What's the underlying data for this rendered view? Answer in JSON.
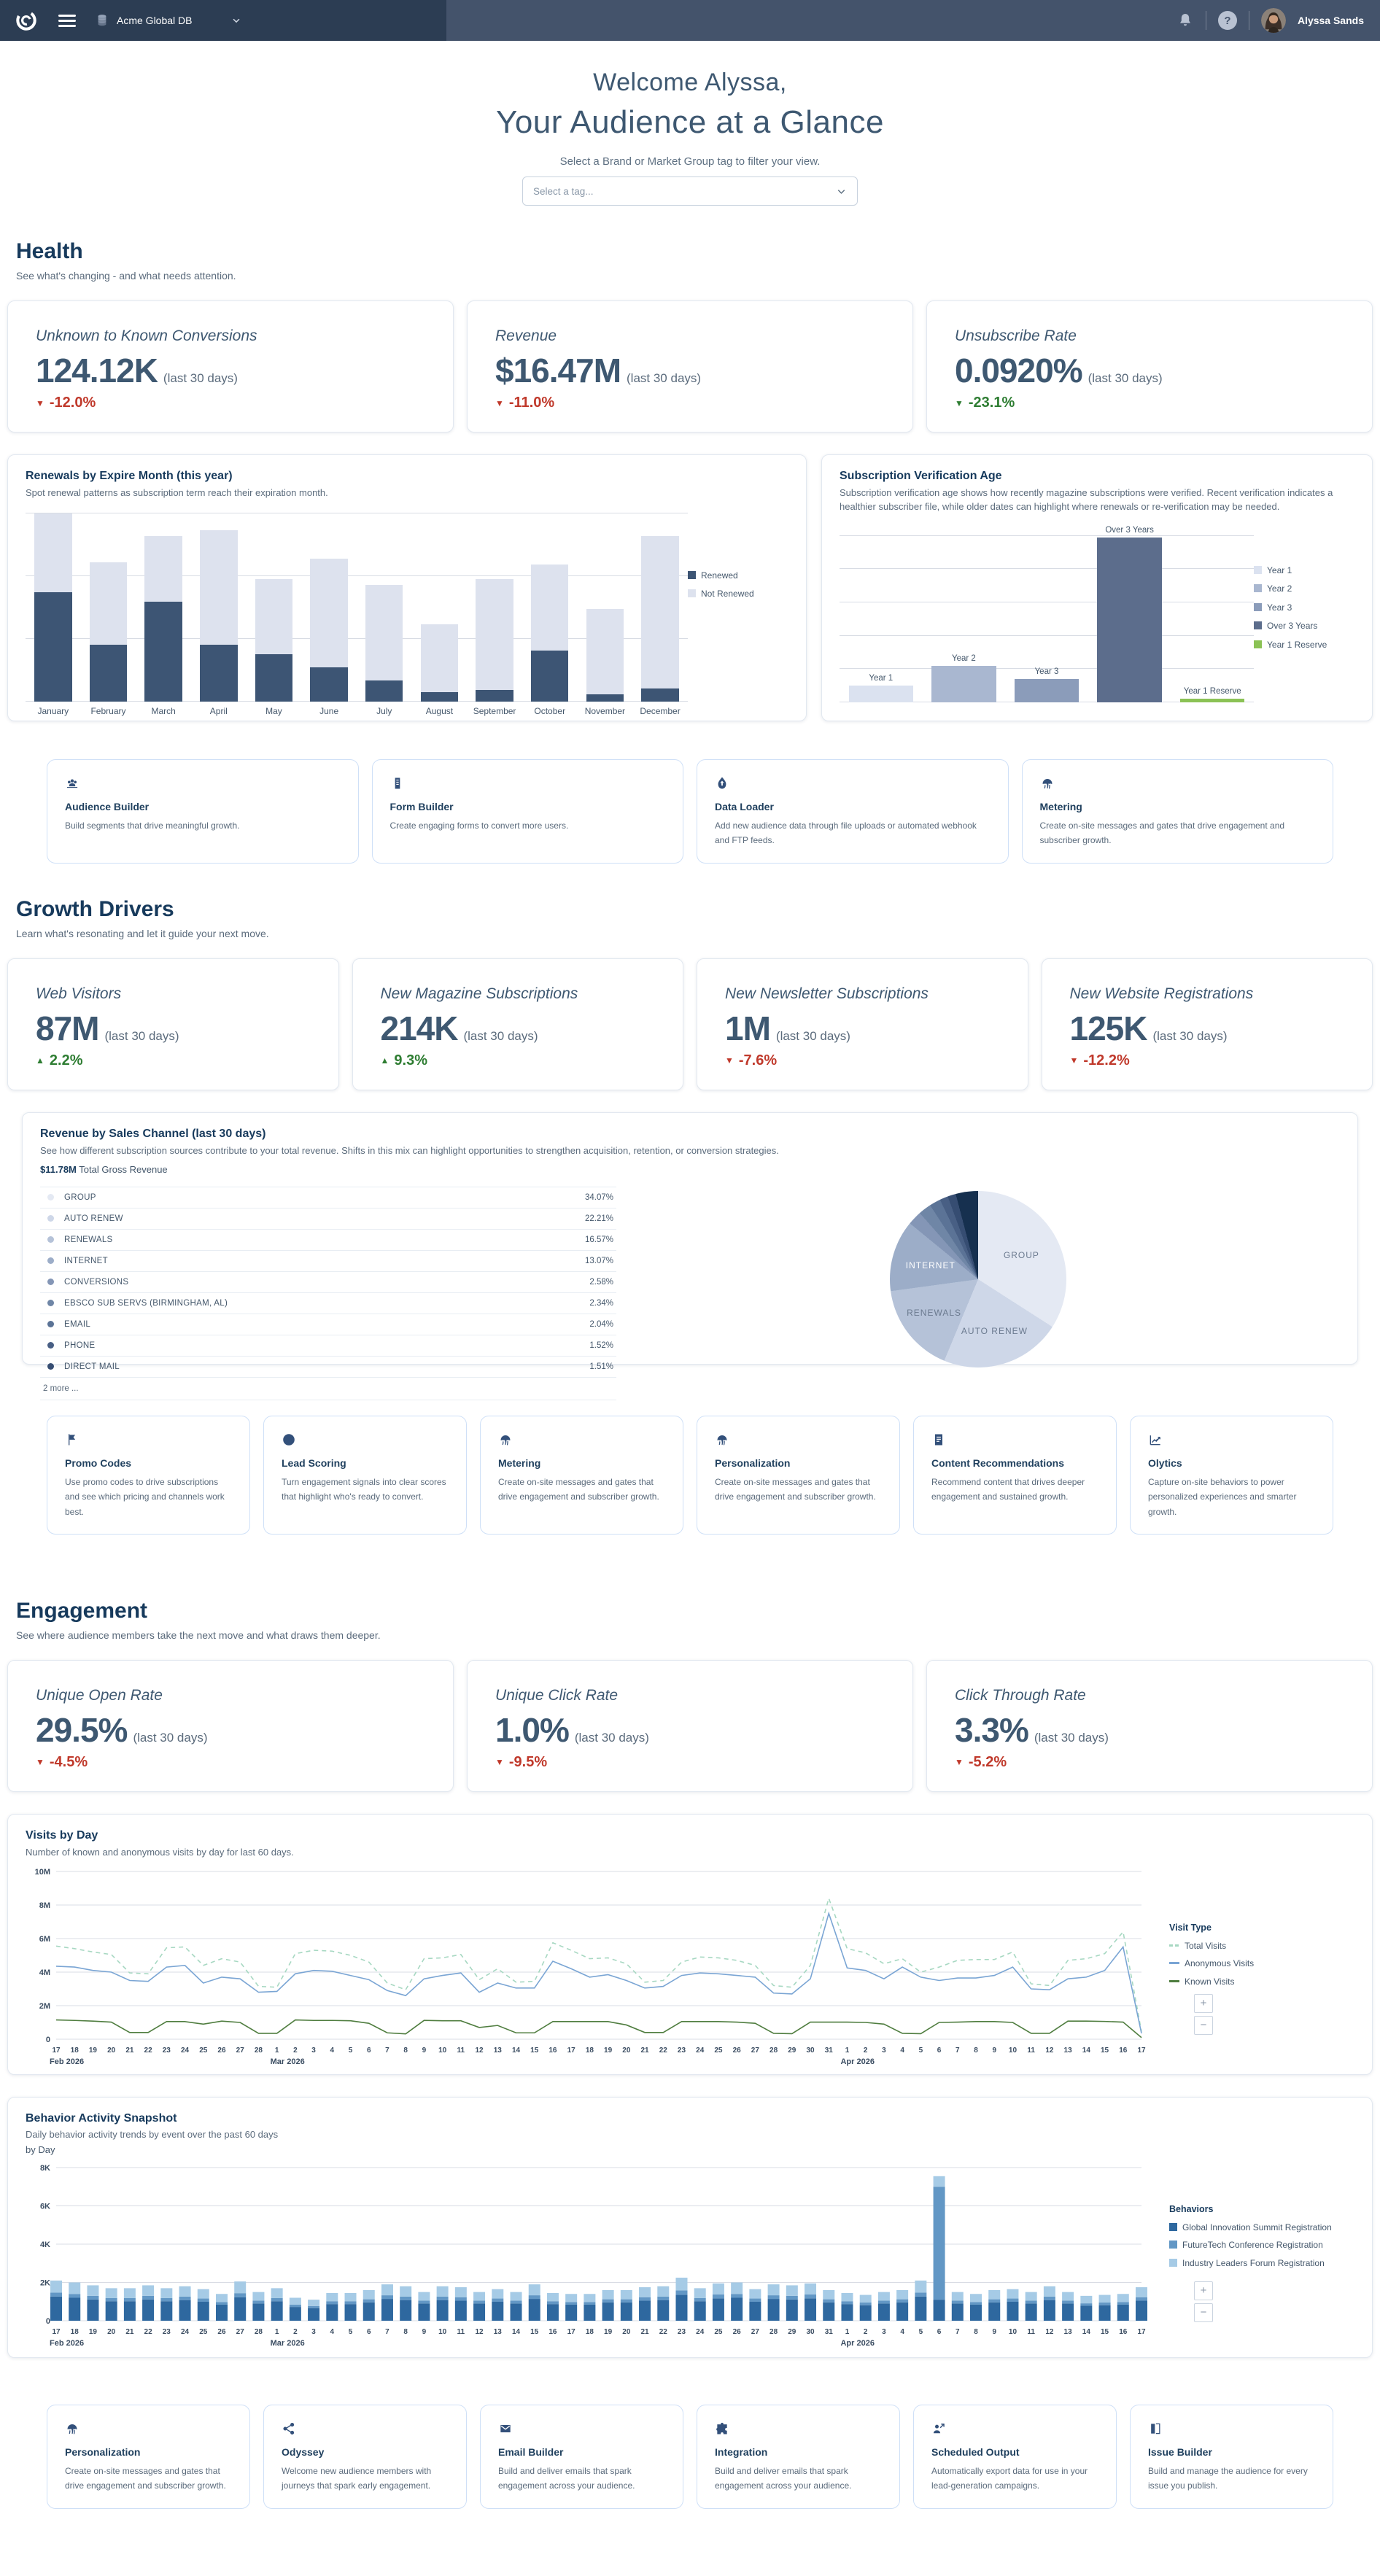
{
  "navbar": {
    "db_name": "Acme Global DB",
    "help_icon": "?",
    "user_name": "Alyssa Sands"
  },
  "header": {
    "welcome": "Welcome Alyssa,",
    "title": "Your Audience at a Glance",
    "filter_hint": "Select a Brand or Market Group tag to filter your view.",
    "tag_placeholder": "Select a tag..."
  },
  "theme": {
    "navbar_left": "#2c3d53",
    "navbar_right": "#44536b",
    "heading": "#173a5c",
    "kpi_text": "#3e5871",
    "negative": "#c0392b",
    "positive": "#2e7d32",
    "card_border": "#e2e8f0",
    "tool_card_border": "#cfe0f7"
  },
  "sections": {
    "health": {
      "title": "Health",
      "subtitle": "See what's changing - and what needs attention.",
      "kpis": [
        {
          "label": "Unknown to Known Conversions",
          "value": "124.12K",
          "period": "(last 30 days)",
          "delta": "-12.0%",
          "dir": "down",
          "tone": "bad"
        },
        {
          "label": "Revenue",
          "value": "$16.47M",
          "period": "(last 30 days)",
          "delta": "-11.0%",
          "dir": "down",
          "tone": "bad"
        },
        {
          "label": "Unsubscribe Rate",
          "value": "0.0920%",
          "period": "(last 30 days)",
          "delta": "-23.1%",
          "dir": "down",
          "tone": "good"
        }
      ]
    },
    "growth": {
      "title": "Growth Drivers",
      "subtitle": "Learn what's resonating and let it guide your next move.",
      "kpis": [
        {
          "label": "Web Visitors",
          "value": "87M",
          "period": "(last 30 days)",
          "delta": "2.2%",
          "dir": "up",
          "tone": "good"
        },
        {
          "label": "New Magazine Subscriptions",
          "value": "214K",
          "period": "(last 30 days)",
          "delta": "9.3%",
          "dir": "up",
          "tone": "good"
        },
        {
          "label": "New Newsletter Subscriptions",
          "value": "1M",
          "period": "(last 30 days)",
          "delta": "-7.6%",
          "dir": "down",
          "tone": "bad"
        },
        {
          "label": "New Website Registrations",
          "value": "125K",
          "period": "(last 30 days)",
          "delta": "-12.2%",
          "dir": "down",
          "tone": "bad"
        }
      ]
    },
    "engagement": {
      "title": "Engagement",
      "subtitle": "See where audience members take the next move and what draws them deeper.",
      "kpis": [
        {
          "label": "Unique Open Rate",
          "value": "29.5%",
          "period": "(last 30 days)",
          "delta": "-4.5%",
          "dir": "down",
          "tone": "bad"
        },
        {
          "label": "Unique Click Rate",
          "value": "1.0%",
          "period": "(last 30 days)",
          "delta": "-9.5%",
          "dir": "down",
          "tone": "bad"
        },
        {
          "label": "Click Through Rate",
          "value": "3.3%",
          "period": "(last 30 days)",
          "delta": "-5.2%",
          "dir": "down",
          "tone": "bad"
        }
      ]
    }
  },
  "revenue": {
    "title": "Revenue by Sales Channel (last 30 days)",
    "subtitle": "See how different subscription sources contribute to your total revenue. Shifts in this mix can highlight opportunities to strengthen acquisition, retention, or conversion strategies.",
    "total_value": "$11.78M",
    "total_label": "Total Gross Revenue",
    "more_label": "2 more ...",
    "rows": [
      {
        "label": "GROUP",
        "pct": "34.07%",
        "color": "#e4e9f3"
      },
      {
        "label": "AUTO RENEW",
        "pct": "22.21%",
        "color": "#ced7e8"
      },
      {
        "label": "RENEWALS",
        "pct": "16.57%",
        "color": "#b5c2d8"
      },
      {
        "label": "INTERNET",
        "pct": "13.07%",
        "color": "#9cadc8"
      },
      {
        "label": "CONVERSIONS",
        "pct": "2.58%",
        "color": "#8496b6"
      },
      {
        "label": "EBSCO SUB SERVS (BIRMINGHAM, AL)",
        "pct": "2.34%",
        "color": "#6f86a6"
      },
      {
        "label": "EMAIL",
        "pct": "2.04%",
        "color": "#5b7396"
      },
      {
        "label": "PHONE",
        "pct": "1.52%",
        "color": "#485f84"
      },
      {
        "label": "DIRECT MAIL",
        "pct": "1.51%",
        "color": "#364d72"
      }
    ]
  },
  "tool_rows": {
    "row1": [
      {
        "icon": "users-icon",
        "title": "Audience Builder",
        "desc": "Build segments that drive meaningful growth."
      },
      {
        "icon": "form-icon",
        "title": "Form Builder",
        "desc": "Create engaging forms to convert more users."
      },
      {
        "icon": "upload-icon",
        "title": "Data Loader",
        "desc": "Add new audience data through file uploads or automated webhook and FTP feeds."
      },
      {
        "icon": "metering-icon",
        "title": "Metering",
        "desc": "Create on-site messages and gates that drive engagement and subscriber growth."
      }
    ],
    "row2": [
      {
        "icon": "flag-icon",
        "title": "Promo Codes",
        "desc": "Use promo codes to drive subscriptions and see which pricing and channels work best."
      },
      {
        "icon": "target-icon",
        "title": "Lead Scoring",
        "desc": "Turn engagement signals into clear scores that highlight who's ready to convert."
      },
      {
        "icon": "metering-icon",
        "title": "Metering",
        "desc": "Create on-site messages and gates that drive engagement and subscriber growth."
      },
      {
        "icon": "metering-icon",
        "title": "Personalization",
        "desc": "Create on-site messages and gates that drive engagement and subscriber growth."
      },
      {
        "icon": "content-icon",
        "title": "Content Recommendations",
        "desc": "Recommend content that drives deeper engagement and sustained growth."
      },
      {
        "icon": "olytics-icon",
        "title": "Olytics",
        "desc": "Capture on-site behaviors to power personalized experiences and smarter growth."
      }
    ],
    "row3": [
      {
        "icon": "metering-icon",
        "title": "Personalization",
        "desc": "Create on-site messages and gates that drive engagement and subscriber growth."
      },
      {
        "icon": "odyssey-icon",
        "title": "Odyssey",
        "desc": "Welcome new audience members with journeys that spark early engagement."
      },
      {
        "icon": "email-icon",
        "title": "Email Builder",
        "desc": "Build and deliver emails that spark engagement across your audience."
      },
      {
        "icon": "integration-icon",
        "title": "Integration",
        "desc": "Build and deliver emails that spark engagement across your audience."
      },
      {
        "icon": "scheduled-icon",
        "title": "Scheduled Output",
        "desc": "Automatically export data for use in your lead-generation campaigns."
      },
      {
        "icon": "issue-icon",
        "title": "Issue Builder",
        "desc": "Build and manage the audience for every issue you publish."
      }
    ]
  },
  "timeline": {
    "days": [
      "17",
      "18",
      "19",
      "20",
      "21",
      "22",
      "23",
      "24",
      "25",
      "26",
      "27",
      "28",
      "1",
      "2",
      "3",
      "4",
      "5",
      "6",
      "7",
      "8",
      "9",
      "10",
      "11",
      "12",
      "13",
      "14",
      "15",
      "16",
      "17",
      "18",
      "19",
      "20",
      "21",
      "22",
      "23",
      "24",
      "25",
      "26",
      "27",
      "28",
      "29",
      "30",
      "31",
      "1",
      "2",
      "3",
      "4",
      "5",
      "6",
      "7",
      "8",
      "9",
      "10",
      "11",
      "12",
      "13",
      "14",
      "15",
      "16",
      "17"
    ],
    "months": {
      "0": "Feb 2026",
      "12": "Mar 2026",
      "43": "Apr 2026"
    }
  },
  "zoom_controls": {
    "plus": "+",
    "minus": "−"
  },
  "chart_data": [
    {
      "id": "renewals",
      "type": "bar",
      "stacked": true,
      "title": "Renewals by Expire Month (this year)",
      "subtitle": "Spot renewal patterns as subscription term reach their expiration month.",
      "categories": [
        "January",
        "February",
        "March",
        "April",
        "May",
        "June",
        "July",
        "August",
        "September",
        "October",
        "November",
        "December"
      ],
      "series": [
        {
          "name": "Renewed",
          "color": "#3d5574",
          "values": [
            58,
            30,
            53,
            30,
            25,
            18,
            11,
            5,
            6,
            27,
            4,
            7
          ]
        },
        {
          "name": "Not Renewed",
          "color": "#dde2ee",
          "values": [
            42,
            44,
            35,
            61,
            40,
            58,
            51,
            36,
            59,
            46,
            45,
            81
          ]
        }
      ],
      "ylim": [
        0,
        100
      ],
      "grid": true,
      "legend_position": "right"
    },
    {
      "id": "verification",
      "type": "bar",
      "title": "Subscription Verification Age",
      "subtitle": "Subscription verification age shows how recently magazine subscriptions were verified. Recent verification indicates a healthier subscriber file, while older dates can highlight where renewals or re-verification may be needed.",
      "categories": [
        "Year 1",
        "Year 2",
        "Year 3",
        "Over 3 Years",
        "Year 1 Reserve"
      ],
      "values": [
        10,
        22,
        14,
        99,
        2
      ],
      "colors": [
        "#dbe2f0",
        "#a9b7d0",
        "#8b9cba",
        "#5c6d8c",
        "#8bc255"
      ],
      "ylim": [
        0,
        100
      ],
      "grid": true,
      "legend_position": "right"
    },
    {
      "id": "revenue_pie",
      "type": "pie",
      "title": "Revenue by Sales Channel (last 30 days)",
      "labels": [
        "GROUP",
        "AUTO RENEW",
        "RENEWALS",
        "INTERNET",
        "CONVERSIONS",
        "EBSCO SUB SERVS (BIRMINGHAM, AL)",
        "EMAIL",
        "PHONE",
        "DIRECT MAIL",
        "2 more ..."
      ],
      "values": [
        34.07,
        22.21,
        16.57,
        13.07,
        2.58,
        2.34,
        2.04,
        1.52,
        1.51,
        4.09
      ],
      "colors": [
        "#e4e9f3",
        "#ced7e8",
        "#b5c2d8",
        "#9cadc8",
        "#8496b6",
        "#6f86a6",
        "#5b7396",
        "#485f84",
        "#364d72",
        "#16304f"
      ],
      "callout_labels": [
        "GROUP",
        "AUTO RENEW",
        "RENEWALS",
        "INTERNET"
      ]
    },
    {
      "id": "visits",
      "type": "line",
      "title": "Visits by Day",
      "subtitle": "Number of known and anonymous visits by day for last 60 days.",
      "legend_title": "Visit Type",
      "ylim": [
        0,
        10
      ],
      "yticks": [
        "0",
        "2M",
        "4M",
        "6M",
        "8M",
        "10M"
      ],
      "grid": true,
      "legend_position": "right",
      "series": [
        {
          "name": "Total Visits",
          "color": "#a7d8c2",
          "dashed": true,
          "values": [
            5.55,
            5.4,
            5.2,
            5.05,
            3.95,
            3.9,
            5.45,
            5.5,
            4.4,
            4.8,
            4.6,
            3.15,
            3.1,
            5.1,
            5.3,
            5.25,
            5.0,
            4.6,
            3.35,
            2.95,
            4.8,
            4.85,
            5.05,
            3.55,
            4.2,
            3.4,
            3.45,
            5.75,
            5.3,
            4.8,
            4.85,
            4.5,
            3.4,
            3.5,
            4.6,
            4.9,
            4.85,
            4.7,
            4.4,
            3.2,
            3.1,
            4.4,
            8.4,
            5.4,
            5.15,
            4.5,
            4.8,
            4.0,
            4.3,
            4.7,
            4.75,
            4.75,
            5.2,
            3.3,
            3.2,
            4.7,
            4.8,
            5.1,
            6.4,
            0.45
          ]
        },
        {
          "name": "Anonymous Visits",
          "color": "#7aa5d4",
          "dashed": false,
          "values": [
            4.35,
            4.3,
            4.1,
            4.0,
            3.5,
            3.45,
            4.3,
            4.4,
            3.35,
            3.7,
            3.6,
            2.8,
            2.85,
            3.9,
            4.1,
            4.05,
            3.8,
            3.55,
            2.9,
            2.6,
            3.6,
            3.8,
            3.95,
            2.8,
            3.35,
            3.05,
            3.05,
            4.65,
            4.2,
            3.7,
            3.85,
            3.5,
            3.05,
            3.15,
            3.8,
            3.95,
            3.9,
            3.8,
            3.7,
            2.75,
            2.7,
            3.6,
            7.5,
            4.25,
            4.1,
            3.6,
            4.3,
            3.7,
            3.5,
            3.65,
            3.65,
            3.8,
            4.3,
            3.0,
            2.95,
            3.6,
            3.7,
            4.1,
            5.5,
            0.35
          ]
        },
        {
          "name": "Known Visits",
          "color": "#4f7d3f",
          "dashed": false,
          "values": [
            1.15,
            1.12,
            1.08,
            1.02,
            0.4,
            0.4,
            1.05,
            1.05,
            0.9,
            1.08,
            1.0,
            0.35,
            0.35,
            1.15,
            1.12,
            1.12,
            1.1,
            0.95,
            0.38,
            0.32,
            1.12,
            1.1,
            1.1,
            0.7,
            0.82,
            0.38,
            0.38,
            1.05,
            1.05,
            1.05,
            1.05,
            0.85,
            0.4,
            0.4,
            1.05,
            1.05,
            1.05,
            1.02,
            0.95,
            0.35,
            0.33,
            1.02,
            1.02,
            1.02,
            1.0,
            0.9,
            0.35,
            0.33,
            1.0,
            1.02,
            1.05,
            1.05,
            1.0,
            0.35,
            0.35,
            1.08,
            1.08,
            1.06,
            1.02,
            0.1
          ]
        }
      ]
    },
    {
      "id": "behavior",
      "type": "bar",
      "stacked": true,
      "title": "Behavior Activity Snapshot",
      "subtitle": "Daily behavior activity trends by event over the past 60 days",
      "subtitle2": "by Day",
      "legend_title": "Behaviors",
      "ylim": [
        0,
        8
      ],
      "yticks": [
        "0",
        "2K",
        "4K",
        "6K",
        "8K"
      ],
      "grid": true,
      "legend_position": "right",
      "series": [
        {
          "name": "Global Innovation Summit Registration",
          "color": "#2e689f",
          "values": [
            1.26,
            1.2,
            1.11,
            1.02,
            1.02,
            1.11,
            1.02,
            1.08,
            0.99,
            0.84,
            1.23,
            0.9,
            1.02,
            0.72,
            0.66,
            0.87,
            0.87,
            0.96,
            1.14,
            1.08,
            0.9,
            1.08,
            1.05,
            0.9,
            0.99,
            0.9,
            1.14,
            0.87,
            0.84,
            0.84,
            0.96,
            0.96,
            1.05,
            1.08,
            1.35,
            1.02,
            1.17,
            1.2,
            0.99,
            1.14,
            1.11,
            1.17,
            0.96,
            0.87,
            0.81,
            0.9,
            0.96,
            1.26,
            1.1,
            0.9,
            0.84,
            0.96,
            0.99,
            0.9,
            1.08,
            0.9,
            0.78,
            0.81,
            0.84,
            1.05
          ]
        },
        {
          "name": "FutureTech Conference Registration",
          "color": "#6297c5",
          "values": [
            0.21,
            0.2,
            0.19,
            0.17,
            0.17,
            0.19,
            0.17,
            0.18,
            0.17,
            0.14,
            0.21,
            0.15,
            0.17,
            0.12,
            0.11,
            0.15,
            0.15,
            0.16,
            0.19,
            0.18,
            0.15,
            0.18,
            0.18,
            0.15,
            0.17,
            0.15,
            0.19,
            0.15,
            0.14,
            0.14,
            0.16,
            0.16,
            0.18,
            0.18,
            0.23,
            0.17,
            0.2,
            0.2,
            0.17,
            0.19,
            0.19,
            0.2,
            0.16,
            0.15,
            0.14,
            0.15,
            0.16,
            0.21,
            5.9,
            0.15,
            0.14,
            0.16,
            0.17,
            0.15,
            0.18,
            0.15,
            0.13,
            0.14,
            0.14,
            0.18
          ]
        },
        {
          "name": "Industry Leaders Forum Registration",
          "color": "#a6cbe6",
          "values": [
            0.63,
            0.6,
            0.55,
            0.51,
            0.51,
            0.55,
            0.51,
            0.54,
            0.49,
            0.42,
            0.61,
            0.45,
            0.51,
            0.36,
            0.33,
            0.43,
            0.43,
            0.48,
            0.57,
            0.54,
            0.45,
            0.54,
            0.52,
            0.45,
            0.49,
            0.45,
            0.57,
            0.43,
            0.42,
            0.42,
            0.48,
            0.48,
            0.52,
            0.54,
            0.67,
            0.51,
            0.58,
            0.6,
            0.49,
            0.57,
            0.55,
            0.58,
            0.48,
            0.43,
            0.4,
            0.45,
            0.48,
            0.63,
            0.55,
            0.45,
            0.42,
            0.48,
            0.49,
            0.45,
            0.54,
            0.45,
            0.39,
            0.4,
            0.42,
            0.52
          ]
        }
      ]
    }
  ]
}
